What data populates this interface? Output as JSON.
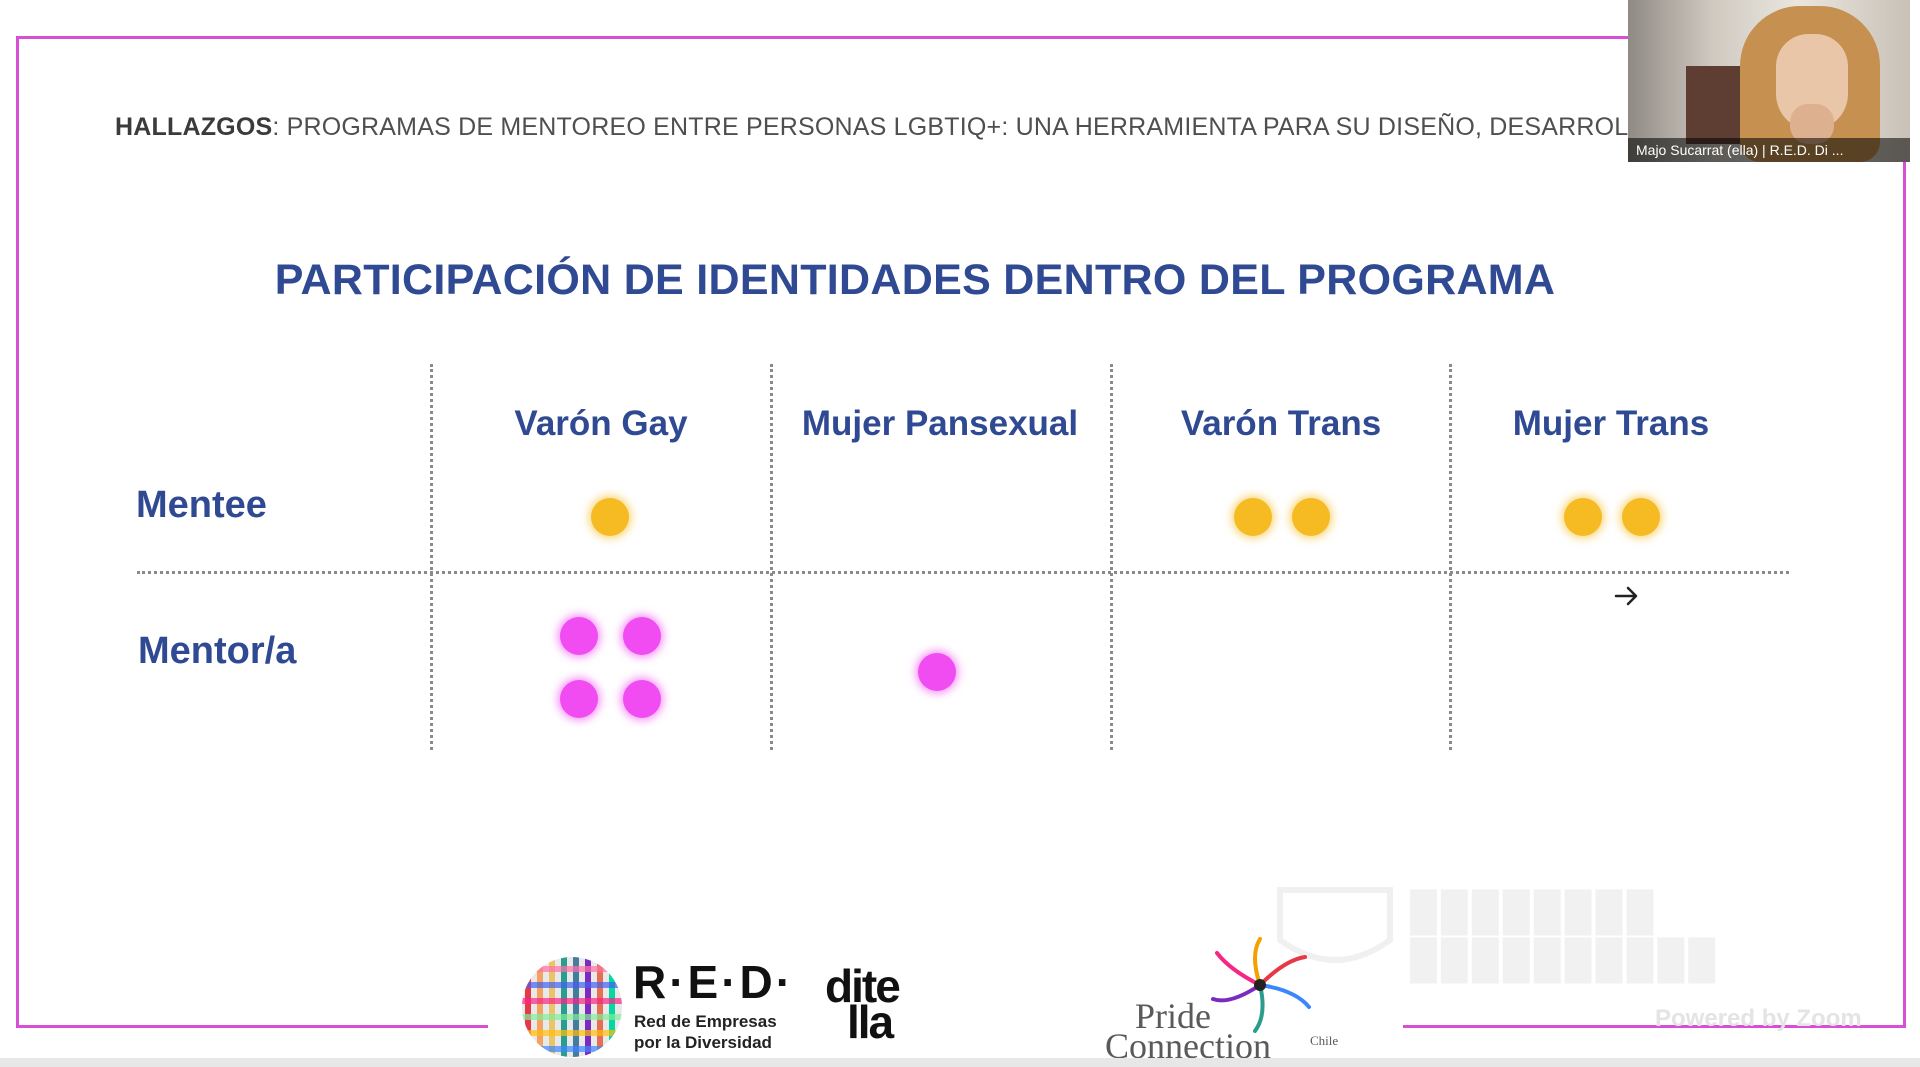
{
  "header": {
    "bold_prefix": "HALLAZGOS",
    "text": ": PROGRAMAS DE MENTOREO ENTRE PERSONAS LGBTIQ+: UNA HERRAMIENTA PARA SU DISEÑO, DESARROLLO"
  },
  "slide": {
    "title": "PARTICIPACIÓN DE IDENTIDADES DENTRO DEL PROGRAMA",
    "columns": [
      "Varón Gay",
      "Mujer Pansexual",
      "Varón Trans",
      "Mujer Trans"
    ],
    "rows": [
      "Mentee",
      "Mentor/a"
    ],
    "counts": {
      "Mentee": {
        "Varón Gay": 1,
        "Mujer Pansexual": 0,
        "Varón Trans": 2,
        "Mujer Trans": 2
      },
      "Mentor/a": {
        "Varón Gay": 4,
        "Mujer Pansexual": 1,
        "Varón Trans": 0,
        "Mujer Trans": 0
      }
    },
    "colors": {
      "mentee_dot": "#f6bb22",
      "mentor_dot": "#f14cf2",
      "title": "#2f4a92",
      "frame": "#d84fd6"
    }
  },
  "webcam": {
    "participant_name": "Majo Sucarrat (ella) | R.E.D. Di ..."
  },
  "watermark": {
    "powered_by": "Powered by Zoom"
  },
  "logos": {
    "red_wordmark": "R·E·D·",
    "red_tagline_line1": "Red de Empresas",
    "red_tagline_line2": "por la Diversidad",
    "ditella_line1": "dite",
    "ditella_line2": "lla",
    "pride_word": "Pride",
    "connection_word": "Connection",
    "chile_word": "Chile"
  },
  "icons": {
    "cursor": "arrow-right-cursor-icon"
  }
}
